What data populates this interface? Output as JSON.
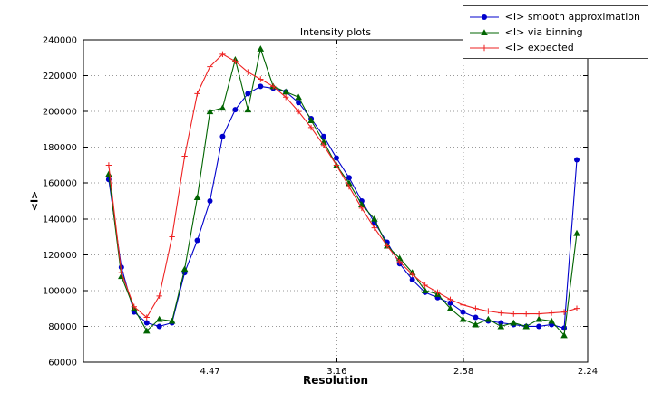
{
  "figure": {
    "background": "#ffffff",
    "frame_color": "#000000",
    "grid_color": "#999999"
  },
  "chart_data": {
    "type": "line",
    "title": "Intensity plots",
    "xlabel": "Resolution",
    "ylabel": "<I>",
    "x_units": "axis linear in 1/d^2, tick labels are resolution d in Angstrom",
    "xlim": [
      0,
      0.1993
    ],
    "ylim": [
      60000,
      240000
    ],
    "grid": true,
    "legend_position": "upper right outside plot",
    "x_ticks": [
      {
        "value": 0.05005,
        "label": "4.47"
      },
      {
        "value": 0.10014,
        "label": "3.16"
      },
      {
        "value": 0.15023,
        "label": "2.58"
      },
      {
        "value": 0.19929,
        "label": "2.24"
      }
    ],
    "y_ticks": [
      {
        "value": 60000,
        "label": "60000"
      },
      {
        "value": 80000,
        "label": "80000"
      },
      {
        "value": 100000,
        "label": "100000"
      },
      {
        "value": 120000,
        "label": "120000"
      },
      {
        "value": 140000,
        "label": "140000"
      },
      {
        "value": 160000,
        "label": "160000"
      },
      {
        "value": 180000,
        "label": "180000"
      },
      {
        "value": 200000,
        "label": "200000"
      },
      {
        "value": 220000,
        "label": "220000"
      },
      {
        "value": 240000,
        "label": "240000"
      }
    ],
    "x_values": [
      0.01,
      0.015,
      0.02,
      0.025,
      0.03,
      0.035,
      0.04,
      0.045,
      0.05,
      0.055,
      0.06,
      0.065,
      0.07,
      0.075,
      0.08,
      0.085,
      0.09,
      0.095,
      0.1,
      0.105,
      0.11,
      0.115,
      0.12,
      0.125,
      0.13,
      0.135,
      0.14,
      0.145,
      0.15,
      0.155,
      0.16,
      0.165,
      0.17,
      0.175,
      0.18,
      0.185,
      0.19,
      0.195
    ],
    "series": [
      {
        "name": "<I> smooth approximation",
        "color": "#0000cc",
        "marker": "circle",
        "values": [
          162000,
          113000,
          88000,
          82000,
          80000,
          82000,
          110000,
          128000,
          150000,
          186000,
          201000,
          210000,
          214000,
          213000,
          211000,
          205000,
          196000,
          186000,
          174000,
          163000,
          150000,
          138000,
          127000,
          115000,
          106000,
          99000,
          96000,
          93000,
          88000,
          85000,
          83000,
          82000,
          81000,
          80000,
          80000,
          81000,
          79000,
          173000
        ]
      },
      {
        "name": "<I> via binning",
        "color": "#006400",
        "marker": "triangle",
        "values": [
          165000,
          108000,
          90000,
          77500,
          84000,
          83000,
          112000,
          152000,
          200000,
          202000,
          229000,
          201000,
          235000,
          214000,
          211000,
          208000,
          195000,
          183000,
          170000,
          160000,
          148000,
          140000,
          125000,
          118000,
          110000,
          100000,
          98000,
          90000,
          84000,
          81000,
          84000,
          80000,
          82000,
          80000,
          84000,
          83000,
          75000,
          132000
        ]
      },
      {
        "name": "<I> expected",
        "color": "#ee2222",
        "marker": "plus",
        "values": [
          170000,
          110000,
          91000,
          85000,
          97000,
          130000,
          175000,
          210000,
          225000,
          232000,
          228000,
          222000,
          218000,
          214000,
          208000,
          200000,
          191000,
          181000,
          170000,
          158000,
          146000,
          135000,
          125000,
          116000,
          109000,
          103000,
          99000,
          95000,
          92000,
          90000,
          88500,
          87500,
          87000,
          87000,
          87000,
          87500,
          88000,
          90000
        ]
      }
    ]
  }
}
